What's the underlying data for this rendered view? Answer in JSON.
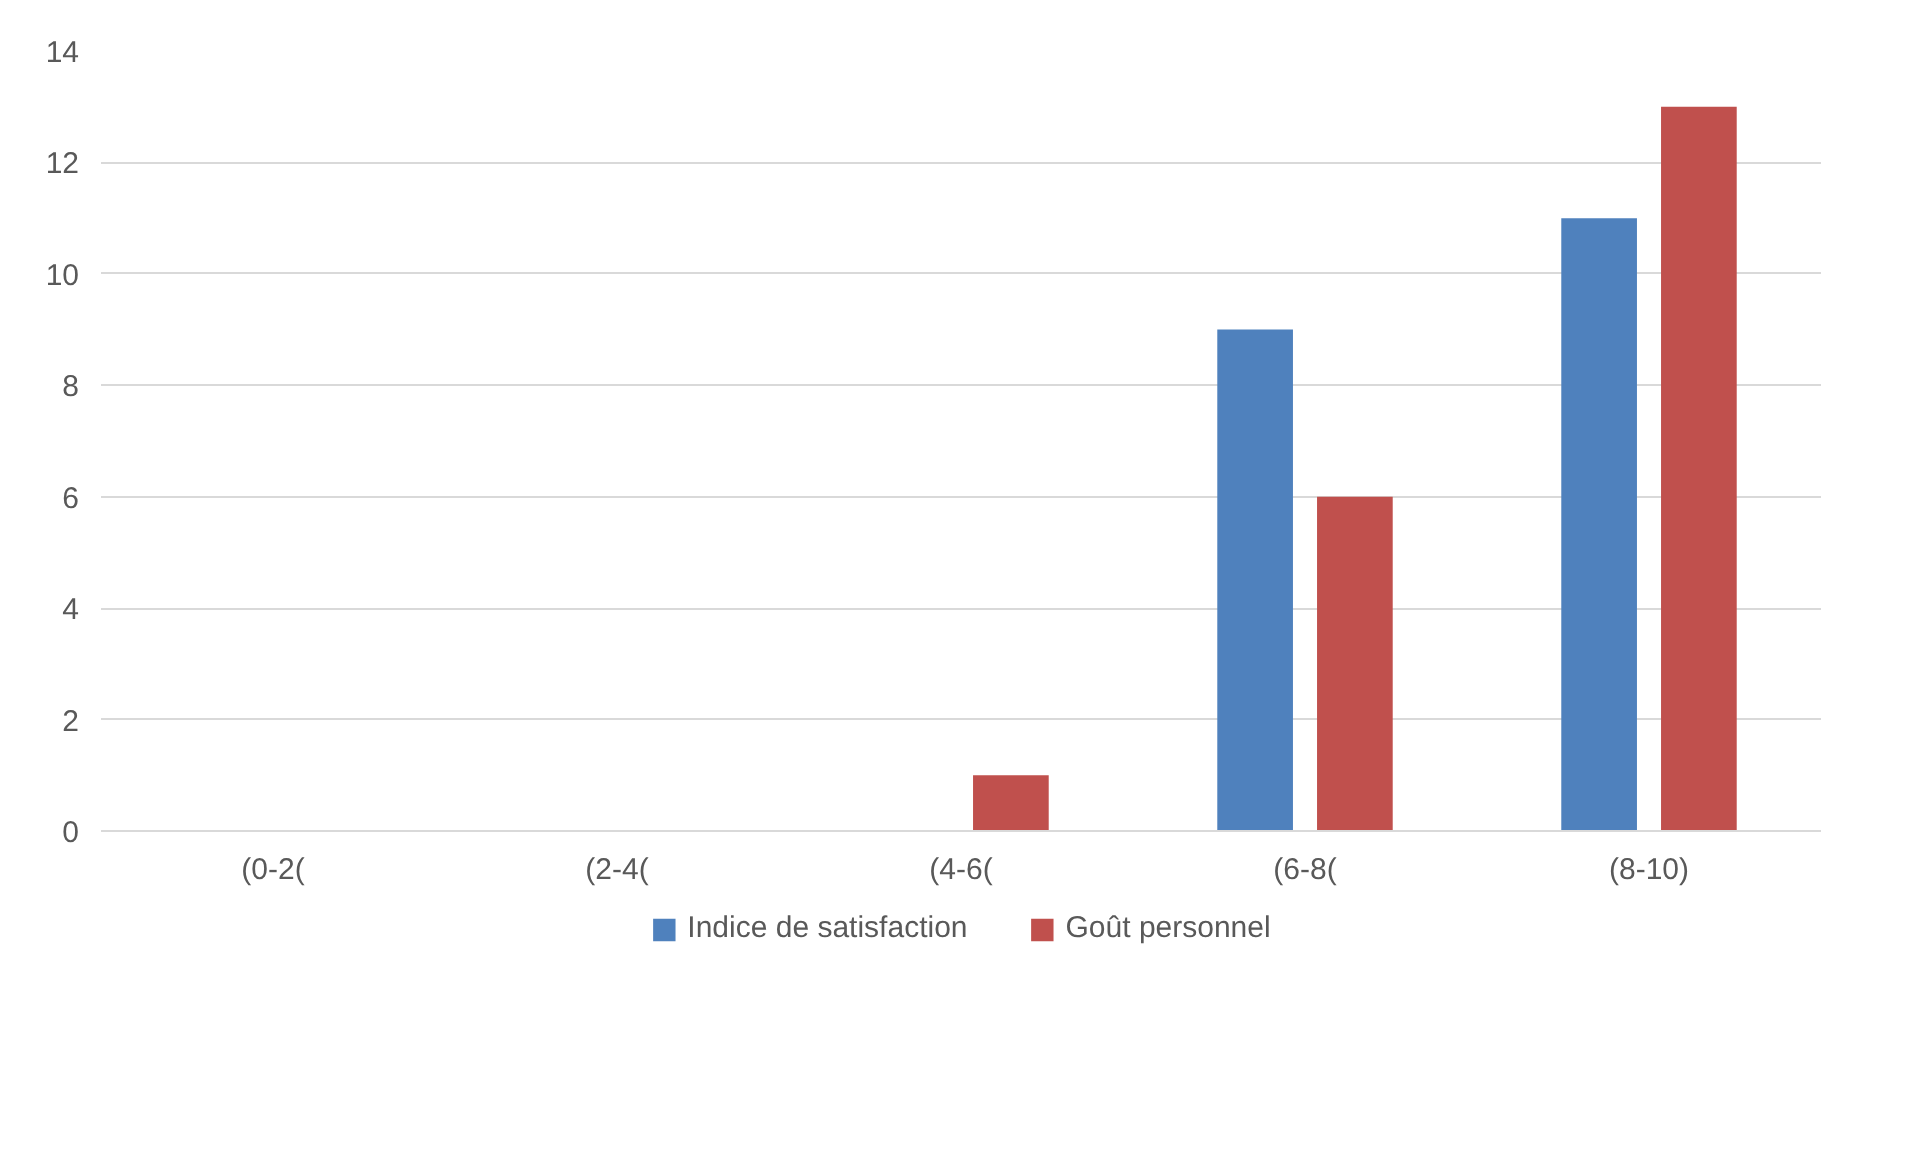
{
  "chart_data": {
    "type": "bar",
    "categories": [
      "(0-2(",
      "(2-4(",
      "(4-6(",
      "(6-8(",
      "(8-10)"
    ],
    "series": [
      {
        "name": "Indice de satisfaction",
        "color": "#4f81bd",
        "values": [
          0,
          0,
          0,
          9,
          11
        ]
      },
      {
        "name": "Goût personnel",
        "color": "#c0504d",
        "values": [
          0,
          0,
          1,
          6,
          13
        ]
      }
    ],
    "ylim": [
      0,
      14
    ],
    "yticks": [
      0,
      2,
      4,
      6,
      8,
      10,
      12,
      14
    ],
    "grid": "y",
    "legend": "bottom"
  }
}
